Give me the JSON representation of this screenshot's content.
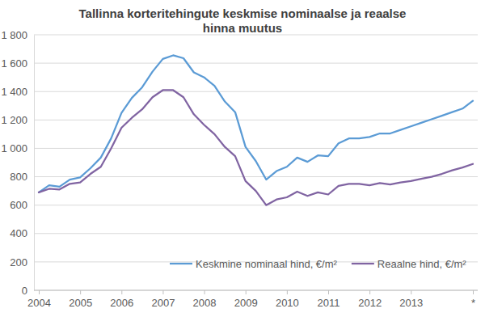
{
  "chart_data": {
    "type": "line",
    "title": "Tallinna korteritehingute keskmise nominaalse ja reaalse hinna muutus",
    "categories": [
      "2004",
      null,
      null,
      null,
      "2005",
      null,
      null,
      null,
      "2006",
      null,
      null,
      null,
      "2007",
      null,
      null,
      null,
      "2008",
      null,
      null,
      null,
      "2009",
      null,
      null,
      null,
      "2010",
      null,
      null,
      null,
      "2011",
      null,
      null,
      null,
      "2012",
      null,
      null,
      null,
      "2013",
      null,
      null,
      null,
      null,
      null,
      "*"
    ],
    "series": [
      {
        "name": "Keskmine nominaal hind, €/m²",
        "color": "#5b9bd5",
        "values": [
          690,
          740,
          730,
          780,
          795,
          860,
          935,
          1070,
          1250,
          1355,
          1430,
          1540,
          1630,
          1655,
          1635,
          1535,
          1500,
          1440,
          1330,
          1255,
          1010,
          910,
          780,
          840,
          870,
          935,
          905,
          950,
          945,
          1035,
          1070,
          1070,
          1080,
          1105,
          1105,
          1130,
          1155,
          1180,
          1205,
          1230,
          1255,
          1280,
          1335
        ]
      },
      {
        "name": "Reaalne hind, €/m²",
        "color": "#8064a2",
        "values": [
          690,
          715,
          710,
          750,
          760,
          820,
          870,
          1000,
          1145,
          1215,
          1275,
          1360,
          1410,
          1410,
          1360,
          1240,
          1165,
          1100,
          1010,
          945,
          770,
          700,
          600,
          640,
          655,
          695,
          665,
          690,
          675,
          735,
          750,
          750,
          740,
          755,
          745,
          760,
          770,
          785,
          800,
          820,
          845,
          865,
          890
        ]
      }
    ],
    "ylim": [
      0,
      1800
    ],
    "yticks": [
      0,
      200,
      400,
      600,
      800,
      {
        "value": 1000,
        "label": "1 000"
      },
      {
        "value": 1200,
        "label": "1 200"
      },
      {
        "value": 1400,
        "label": "1 400"
      },
      {
        "value": 1600,
        "label": "1 600"
      },
      {
        "value": 1800,
        "label": "1 800"
      }
    ],
    "grid": true,
    "legend": "bottom"
  }
}
